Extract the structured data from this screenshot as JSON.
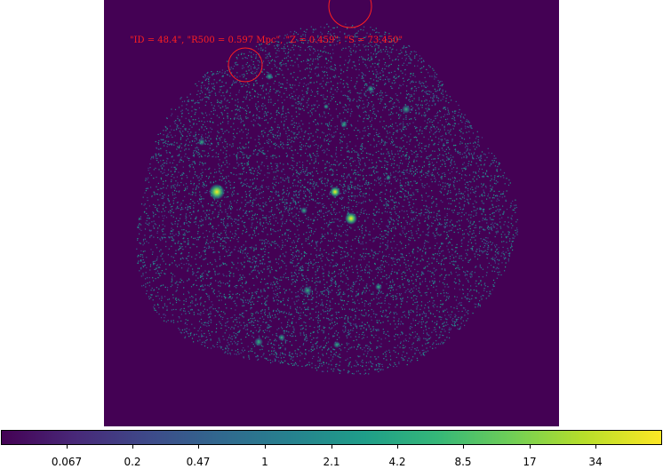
{
  "image": {
    "annotation": "\"ID = 48.4\", \"R500 = 0.597 Mpc\", \"Z = 0.459\", \"S = 73.450\"",
    "background_color": "#440154",
    "region_color": "#ff2020"
  },
  "colorbar": {
    "colormap": "viridis",
    "scale": "log",
    "tick_labels": [
      "0.067",
      "0.2",
      "0.47",
      "1",
      "2.1",
      "4.2",
      "8.5",
      "17",
      "34"
    ]
  }
}
